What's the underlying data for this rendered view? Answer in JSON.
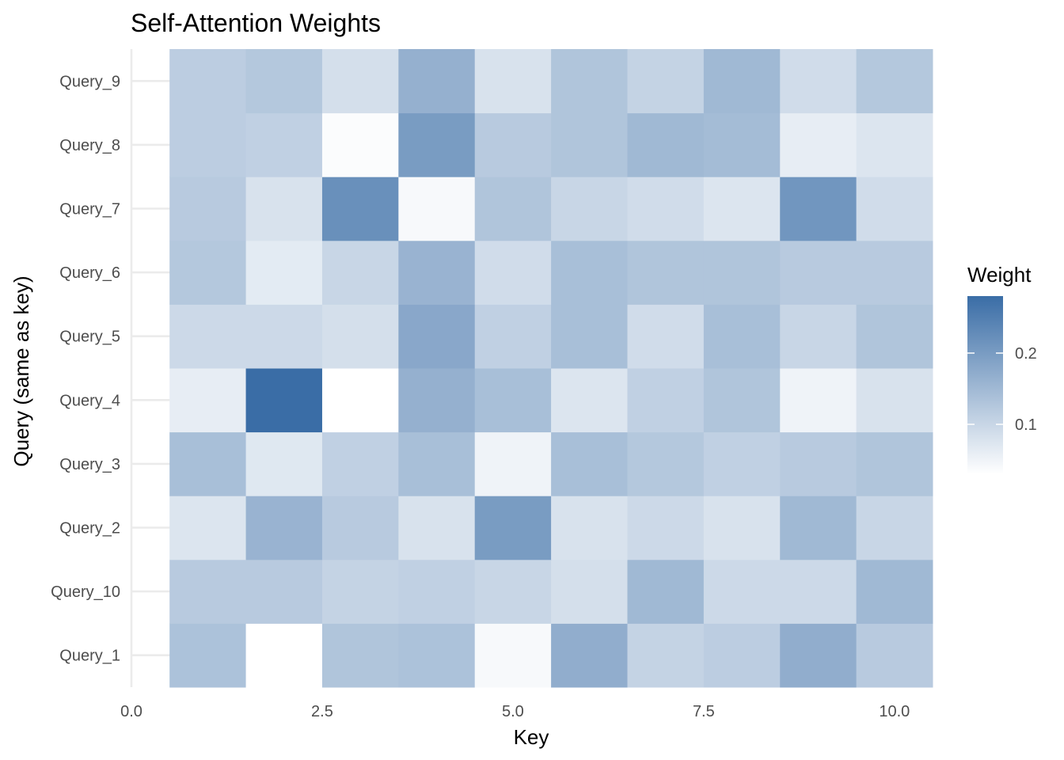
{
  "chart_data": {
    "type": "heatmap",
    "title": "Self-Attention Weights",
    "xlabel": "Key",
    "ylabel": "Query (same as key)",
    "x": [
      1,
      2,
      3,
      4,
      5,
      6,
      7,
      8,
      9,
      10
    ],
    "xlim": [
      0,
      10.5
    ],
    "x_ticks": [
      0,
      2.5,
      5,
      7.5,
      10
    ],
    "x_tick_labels": [
      "0.0",
      "2.5",
      "5.0",
      "7.5",
      "10.0"
    ],
    "y_categories": [
      "Query_1",
      "Query_10",
      "Query_2",
      "Query_3",
      "Query_4",
      "Query_5",
      "Query_6",
      "Query_7",
      "Query_8",
      "Query_9"
    ],
    "values": [
      [
        0.135,
        0.03,
        0.13,
        0.135,
        0.04,
        0.17,
        0.105,
        0.115,
        0.17,
        0.12
      ],
      [
        0.12,
        0.12,
        0.105,
        0.11,
        0.1,
        0.085,
        0.15,
        0.095,
        0.095,
        0.15
      ],
      [
        0.075,
        0.16,
        0.12,
        0.08,
        0.2,
        0.08,
        0.095,
        0.08,
        0.15,
        0.1
      ],
      [
        0.14,
        0.07,
        0.11,
        0.14,
        0.05,
        0.14,
        0.125,
        0.11,
        0.12,
        0.13
      ],
      [
        0.06,
        0.28,
        0.03,
        0.165,
        0.14,
        0.075,
        0.11,
        0.13,
        0.05,
        0.08
      ],
      [
        0.095,
        0.095,
        0.085,
        0.18,
        0.11,
        0.14,
        0.09,
        0.14,
        0.1,
        0.13
      ],
      [
        0.125,
        0.065,
        0.1,
        0.16,
        0.09,
        0.14,
        0.13,
        0.13,
        0.12,
        0.12
      ],
      [
        0.12,
        0.08,
        0.22,
        0.04,
        0.13,
        0.1,
        0.09,
        0.075,
        0.21,
        0.09
      ],
      [
        0.115,
        0.11,
        0.035,
        0.2,
        0.12,
        0.13,
        0.15,
        0.145,
        0.06,
        0.075
      ],
      [
        0.115,
        0.125,
        0.085,
        0.165,
        0.08,
        0.13,
        0.105,
        0.15,
        0.09,
        0.125
      ]
    ],
    "legend": {
      "title": "Weight",
      "position": "right",
      "min": 0.03,
      "max": 0.28,
      "ticks": [
        0.1,
        0.2
      ],
      "tick_labels": [
        "0.1",
        "0.2"
      ],
      "low_color": "#ffffff",
      "high_color": "#3a6da6"
    },
    "grid": true
  }
}
